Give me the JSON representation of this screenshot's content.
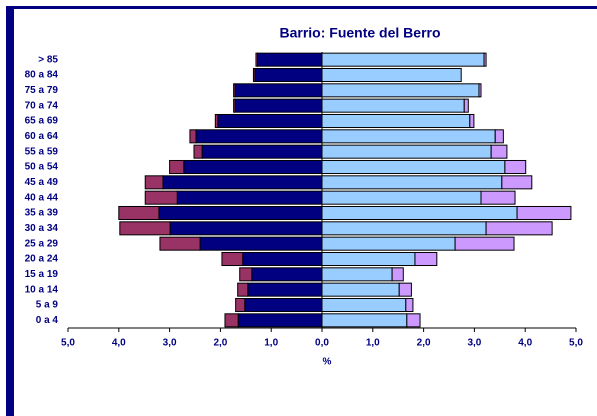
{
  "chart_data": {
    "type": "pyramid",
    "title": "Barrio: Fuente del Berro",
    "x_label": "%",
    "categories": [
      "> 85",
      "80 a 84",
      "75 a 79",
      "70 a 74",
      "65 a 69",
      "60 a 64",
      "55 a 59",
      "50 a 54",
      "45 a 49",
      "40 a 44",
      "35 a 39",
      "30 a 34",
      "25 a 29",
      "20 a 24",
      "15 a 19",
      "10 a 14",
      "5 a 9",
      "0 a 4"
    ],
    "series": [
      {
        "color": "#000080",
        "values": [
          -1.27,
          -1.32,
          -1.71,
          -1.71,
          -2.05,
          -2.48,
          -2.36,
          -2.72,
          -3.13,
          -2.85,
          -3.21,
          -2.99,
          -2.4,
          -1.56,
          -1.38,
          -1.46,
          -1.52,
          -1.65
        ]
      },
      {
        "color": "#993366",
        "values": [
          -0.03,
          -0.03,
          -0.03,
          -0.03,
          -0.05,
          -0.12,
          -0.16,
          -0.28,
          -0.35,
          -0.63,
          -0.79,
          -0.99,
          -0.79,
          -0.41,
          -0.24,
          -0.2,
          -0.18,
          -0.26
        ]
      },
      {
        "color": "#99ccff",
        "values": [
          3.19,
          2.74,
          3.09,
          2.8,
          2.91,
          3.41,
          3.33,
          3.6,
          3.54,
          3.13,
          3.84,
          3.23,
          2.62,
          1.83,
          1.38,
          1.52,
          1.65,
          1.67
        ]
      },
      {
        "color": "#cc99ff",
        "values": [
          0.04,
          0,
          0.04,
          0.08,
          0.08,
          0.16,
          0.31,
          0.41,
          0.59,
          0.67,
          1.06,
          1.3,
          1.16,
          0.43,
          0.22,
          0.24,
          0.14,
          0.26
        ]
      }
    ],
    "xlim": [
      -5,
      5
    ],
    "xticks": [
      {
        "value": -5,
        "label": "5,0"
      },
      {
        "value": -4,
        "label": "4,0"
      },
      {
        "value": -3,
        "label": "3,0"
      },
      {
        "value": -2,
        "label": "2,0"
      },
      {
        "value": -1,
        "label": "1,0"
      },
      {
        "value": 0,
        "label": "0,0"
      },
      {
        "value": 1,
        "label": "1,0"
      },
      {
        "value": 2,
        "label": "2,0"
      },
      {
        "value": 3,
        "label": "3,0"
      },
      {
        "value": 4,
        "label": "4,0"
      },
      {
        "value": 5,
        "label": "5,0"
      }
    ]
  }
}
